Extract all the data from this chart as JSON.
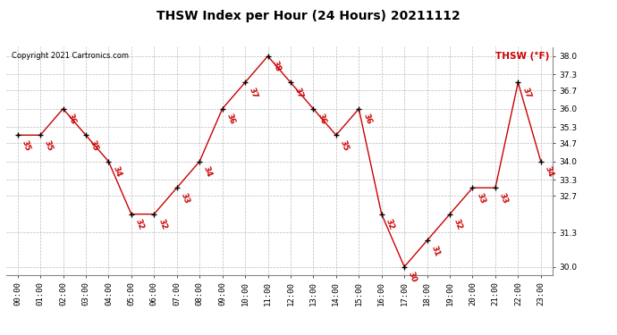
{
  "title": "THSW Index per Hour (24 Hours) 20211112",
  "copyright": "Copyright 2021 Cartronics.com",
  "legend_label": "THSW (°F)",
  "hours": [
    0,
    1,
    2,
    3,
    4,
    5,
    6,
    7,
    8,
    9,
    10,
    11,
    12,
    13,
    14,
    15,
    16,
    17,
    18,
    19,
    20,
    21,
    22,
    23
  ],
  "hour_labels": [
    "00:00",
    "01:00",
    "02:00",
    "03:00",
    "04:00",
    "05:00",
    "06:00",
    "07:00",
    "08:00",
    "09:00",
    "10:00",
    "11:00",
    "12:00",
    "13:00",
    "14:00",
    "15:00",
    "16:00",
    "17:00",
    "18:00",
    "19:00",
    "20:00",
    "21:00",
    "22:00",
    "23:00"
  ],
  "values": [
    35,
    35,
    36,
    35,
    34,
    32,
    32,
    33,
    34,
    36,
    37,
    38,
    37,
    36,
    35,
    36,
    32,
    30,
    31,
    32,
    33,
    33,
    37,
    34
  ],
  "line_color": "#cc0000",
  "marker_color": "#000000",
  "label_color": "#cc0000",
  "background_color": "#ffffff",
  "grid_color": "#bbbbbb",
  "title_color": "#000000",
  "copyright_color": "#000000",
  "legend_color": "#cc0000",
  "ylim_min": 29.7,
  "ylim_max": 38.35,
  "yticks": [
    30.0,
    31.3,
    32.7,
    33.3,
    34.0,
    34.7,
    35.3,
    36.0,
    36.7,
    37.3,
    38.0
  ],
  "ytick_labels": [
    "30.0",
    "31.3",
    "32.7",
    "33.3",
    "34.0",
    "34.7",
    "35.3",
    "36.0",
    "36.7",
    "37.3",
    "38.0"
  ],
  "figwidth": 6.9,
  "figheight": 3.75,
  "dpi": 100
}
